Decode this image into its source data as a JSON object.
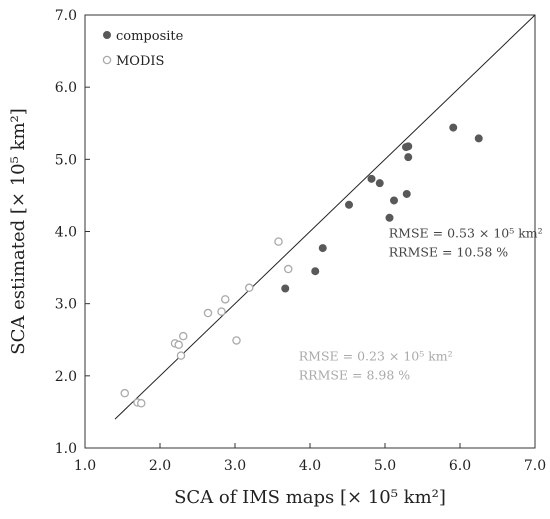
{
  "chart_data": {
    "type": "scatter",
    "title": "",
    "xlabel": "SCA of IMS maps [× 10⁵ km²]",
    "ylabel": "SCA estimated [× 10⁵ km²]",
    "xlim": [
      1.0,
      7.0
    ],
    "ylim": [
      1.0,
      7.0
    ],
    "xticks": [
      "1.0",
      "2.0",
      "3.0",
      "4.0",
      "5.0",
      "6.0",
      "7.0"
    ],
    "yticks": [
      "1.0",
      "2.0",
      "3.0",
      "4.0",
      "5.0",
      "6.0",
      "7.0"
    ],
    "grid": false,
    "legend_position": "top-left",
    "reference_line": {
      "name": "1:1 line",
      "x": [
        1.4,
        7.0
      ],
      "y": [
        1.4,
        7.0
      ]
    },
    "series": [
      {
        "name": "composite",
        "color": "#595959",
        "marker": "filled-circle",
        "points": [
          [
            3.67,
            3.21
          ],
          [
            4.07,
            3.45
          ],
          [
            4.17,
            3.77
          ],
          [
            4.52,
            4.37
          ],
          [
            4.82,
            4.73
          ],
          [
            4.93,
            4.67
          ],
          [
            5.06,
            4.19
          ],
          [
            5.12,
            4.43
          ],
          [
            5.29,
            4.52
          ],
          [
            5.31,
            5.03
          ],
          [
            5.28,
            5.17
          ],
          [
            5.31,
            5.18
          ],
          [
            5.91,
            5.44
          ],
          [
            6.25,
            5.29
          ]
        ]
      },
      {
        "name": "MODIS",
        "color": "#aaaaaa",
        "marker": "open-circle",
        "points": [
          [
            1.53,
            1.76
          ],
          [
            1.7,
            1.63
          ],
          [
            1.75,
            1.62
          ],
          [
            2.2,
            2.45
          ],
          [
            2.25,
            2.43
          ],
          [
            2.28,
            2.28
          ],
          [
            2.31,
            2.55
          ],
          [
            2.64,
            2.87
          ],
          [
            2.82,
            2.89
          ],
          [
            2.87,
            3.06
          ],
          [
            3.02,
            2.49
          ],
          [
            3.19,
            3.22
          ],
          [
            3.58,
            3.86
          ],
          [
            3.71,
            3.48
          ]
        ]
      }
    ],
    "annotations": [
      {
        "lines": [
          "RMSE = 0.53 × 10⁵ km²",
          "RRMSE = 10.58 %"
        ],
        "x": 5.05,
        "y": 3.92,
        "color": "#444444"
      },
      {
        "lines": [
          "RMSE = 0.23 × 10⁵ km²",
          "RRMSE = 8.98 %"
        ],
        "x": 3.85,
        "y": 2.21,
        "color": "#aaaaaa"
      }
    ]
  }
}
